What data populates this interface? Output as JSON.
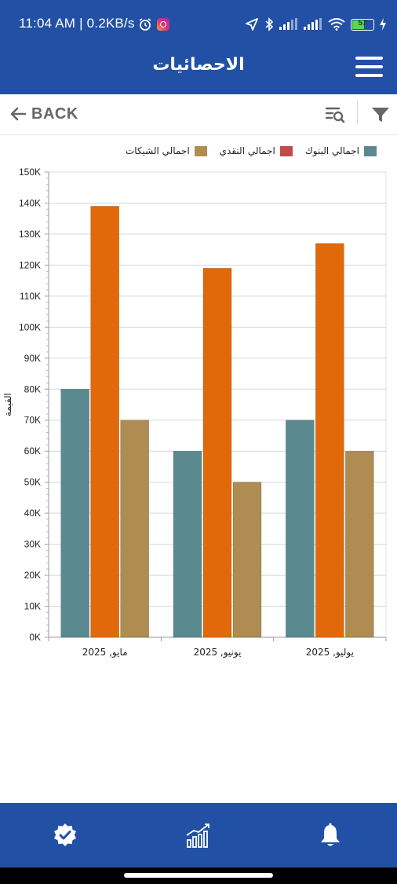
{
  "status_bar": {
    "time": "11:04 AM | 0.2KB/s",
    "battery": "57"
  },
  "app_bar": {
    "title": "الاحصائيات"
  },
  "toolbar": {
    "back_label": "BACK"
  },
  "icons": {
    "menu": "hamburger-menu-icon",
    "back": "arrow-left-icon",
    "search_list": "search-list-icon",
    "filter": "filter-icon",
    "nav_check": "verified-badge-icon",
    "nav_stats": "bar-growth-icon",
    "nav_bell": "bell-icon"
  },
  "colors": {
    "brand_blue": "#2250a5",
    "series_banks": "#5a8a90",
    "series_cash": "#e2690a",
    "series_checks": "#ae8c52",
    "legend_cash": "#c14b4b"
  },
  "chart_data": {
    "type": "bar",
    "categories": [
      "مايو, 2025",
      "يونيو, 2025",
      "يوليو, 2025"
    ],
    "series": [
      {
        "name": "اجمالي البنوك",
        "color": "#5a8a90",
        "values": [
          80000,
          60000,
          70000
        ]
      },
      {
        "name": "اجمالي النقدي",
        "color": "#e2690a",
        "values": [
          139000,
          119000,
          127000
        ]
      },
      {
        "name": "اجمالي الشيكات",
        "color": "#ae8c52",
        "values": [
          70000,
          50000,
          60000
        ]
      }
    ],
    "legend": [
      {
        "name": "اجمالي البنوك",
        "color": "#5a8a90"
      },
      {
        "name": "اجمالي النقدي",
        "color": "#c14b4b"
      },
      {
        "name": "اجمالي الشيكات",
        "color": "#ae8c52"
      }
    ],
    "ylabel": "القيمة",
    "xlabel": "",
    "ylim": [
      0,
      150000
    ],
    "yticks": [
      "0K",
      "10K",
      "20K",
      "30K",
      "40K",
      "50K",
      "60K",
      "70K",
      "80K",
      "90K",
      "100K",
      "110K",
      "120K",
      "130K",
      "140K",
      "150K"
    ],
    "grid": true,
    "legend_position": "top-right"
  }
}
